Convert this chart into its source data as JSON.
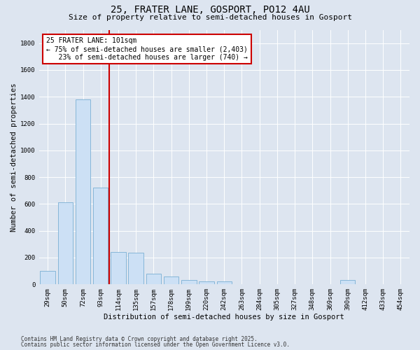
{
  "title": "25, FRATER LANE, GOSPORT, PO12 4AU",
  "subtitle": "Size of property relative to semi-detached houses in Gosport",
  "xlabel": "Distribution of semi-detached houses by size in Gosport",
  "ylabel": "Number of semi-detached properties",
  "categories": [
    "29sqm",
    "50sqm",
    "72sqm",
    "93sqm",
    "114sqm",
    "135sqm",
    "157sqm",
    "178sqm",
    "199sqm",
    "220sqm",
    "242sqm",
    "263sqm",
    "284sqm",
    "305sqm",
    "327sqm",
    "348sqm",
    "369sqm",
    "390sqm",
    "412sqm",
    "433sqm",
    "454sqm"
  ],
  "values": [
    100,
    610,
    1380,
    720,
    240,
    235,
    80,
    60,
    30,
    20,
    20,
    0,
    0,
    0,
    0,
    0,
    0,
    30,
    0,
    0,
    0
  ],
  "bar_color": "#cce0f5",
  "bar_edge_color": "#7aafd4",
  "vline_x_index": 3,
  "vline_color": "#cc0000",
  "annotation_text_line1": "25 FRATER LANE: 101sqm",
  "annotation_text_line2": "← 75% of semi-detached houses are smaller (2,403)",
  "annotation_text_line3": "   23% of semi-detached houses are larger (740) →",
  "annotation_box_color": "#cc0000",
  "ylim": [
    0,
    1900
  ],
  "yticks": [
    0,
    200,
    400,
    600,
    800,
    1000,
    1200,
    1400,
    1600,
    1800
  ],
  "footer1": "Contains HM Land Registry data © Crown copyright and database right 2025.",
  "footer2": "Contains public sector information licensed under the Open Government Licence v3.0.",
  "bg_color": "#dde5f0",
  "plot_bg_color": "#dde5f0",
  "title_fontsize": 10,
  "subtitle_fontsize": 8,
  "axis_label_fontsize": 7.5,
  "tick_fontsize": 6.5,
  "annotation_fontsize": 7,
  "footer_fontsize": 5.5
}
